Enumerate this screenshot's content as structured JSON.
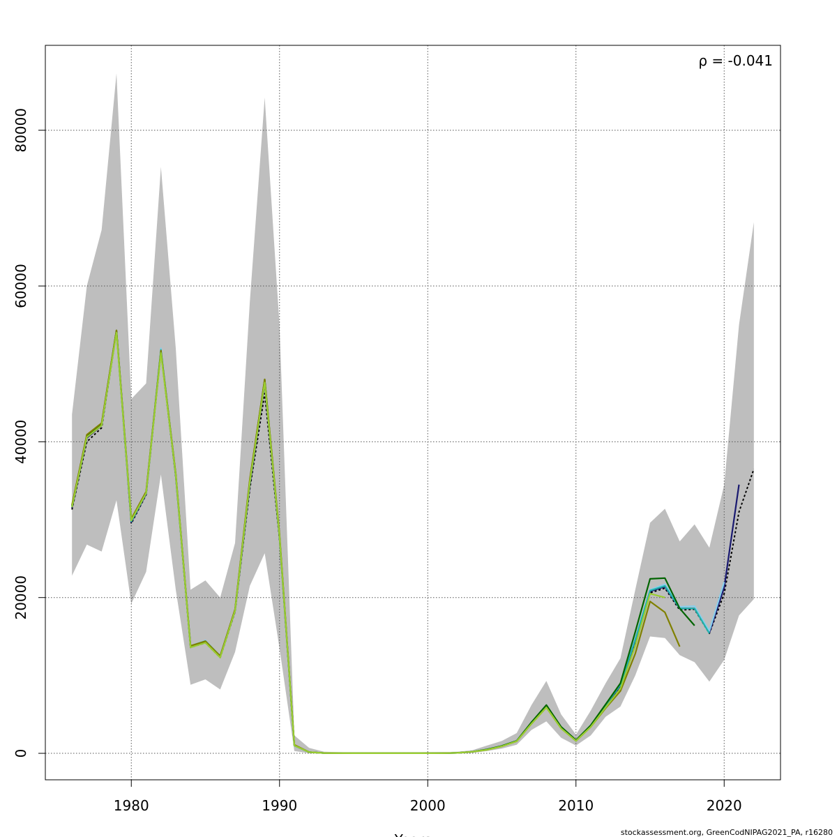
{
  "chart_data": {
    "type": "line",
    "xlabel": "Years",
    "ylabel": "",
    "xlim": [
      1974.2,
      1923.8
    ],
    "ylim": [
      -3400,
      90900
    ],
    "x_ticks": [
      1980,
      1990,
      2000,
      2010,
      2020
    ],
    "y_ticks": [
      0,
      20000,
      40000,
      60000,
      80000
    ],
    "grid": true,
    "annotation": "ρ = -0.041",
    "credit": "stockassessment.org, GreenCodNIPAG2021_PA, r16280",
    "band_color": "#bebebe",
    "confidence_band": {
      "x": [
        1976,
        1977,
        1978,
        1979,
        1980,
        1981,
        1982,
        1983,
        1984,
        1985,
        1986,
        1987,
        1988,
        1989,
        1990,
        1991,
        1992,
        1993,
        1994,
        1995,
        1996,
        1997,
        1998,
        1999,
        2000,
        2001,
        2002,
        2003,
        2004,
        2005,
        2006,
        2007,
        2008,
        2009,
        2010,
        2011,
        2012,
        2013,
        2014,
        2015,
        2016,
        2017,
        2018,
        2019,
        2020,
        2021,
        2022
      ],
      "upper": [
        43500,
        60000,
        67200,
        87300,
        45500,
        47500,
        75300,
        52000,
        21000,
        22200,
        20000,
        27000,
        58000,
        84200,
        55000,
        2300,
        700,
        200,
        150,
        120,
        100,
        100,
        120,
        130,
        150,
        160,
        200,
        400,
        1000,
        1600,
        2600,
        6200,
        9300,
        5000,
        2400,
        5500,
        9000,
        12200,
        21000,
        29600,
        31400,
        27200,
        29400,
        26400,
        34500,
        55000,
        68200
      ],
      "lower": [
        22800,
        26800,
        25900,
        32500,
        19200,
        23300,
        35800,
        21000,
        8800,
        9500,
        8200,
        13000,
        21500,
        25700,
        13500,
        300,
        10,
        5,
        3,
        3,
        3,
        3,
        3,
        3,
        3,
        3,
        10,
        50,
        300,
        600,
        1100,
        3000,
        4100,
        2000,
        1000,
        2300,
        4700,
        6000,
        10000,
        15000,
        14800,
        12600,
        11700,
        9200,
        12000,
        17700,
        19800
      ]
    },
    "series": [
      {
        "color": "#000000",
        "dashed": true,
        "x": [
          1976,
          1977,
          1978,
          1979,
          1980,
          1981,
          1982,
          1983,
          1984,
          1985,
          1986,
          1987,
          1988,
          1989,
          1990,
          1991,
          1992,
          1993,
          1994,
          1995,
          1996,
          1997,
          1998,
          1999,
          2000,
          2001,
          2002,
          2003,
          2004,
          2005,
          2006,
          2007,
          2008,
          2009,
          2010,
          2011,
          2012,
          2013,
          2014,
          2015,
          2016,
          2017,
          2018,
          2019,
          2020,
          2021,
          2022
        ],
        "values": [
          31300,
          40000,
          41800,
          54100,
          29500,
          33200,
          51500,
          35500,
          13600,
          14200,
          12300,
          18200,
          34000,
          46200,
          27500,
          1000,
          150,
          40,
          20,
          10,
          10,
          10,
          10,
          10,
          15,
          20,
          60,
          200,
          500,
          950,
          1600,
          3900,
          6100,
          3300,
          1600,
          3500,
          6100,
          8600,
          14300,
          20600,
          21200,
          18400,
          18500,
          15400,
          20500,
          31000,
          36500
        ]
      },
      {
        "color": "#191970",
        "dashed": false,
        "x": [
          1976,
          1977,
          1978,
          1979,
          1980,
          1981,
          1982,
          1983,
          1984,
          1985,
          1986,
          1987,
          1988,
          1989,
          1990,
          1991,
          1992,
          1993,
          1994,
          1995,
          1996,
          1997,
          1998,
          1999,
          2000,
          2001,
          2002,
          2003,
          2004,
          2005,
          2006,
          2007,
          2008,
          2009,
          2010,
          2011,
          2012,
          2013,
          2014,
          2015,
          2016,
          2017,
          2018,
          2019,
          2020,
          2021
        ],
        "values": [
          31500,
          40500,
          42100,
          54200,
          29700,
          33300,
          51700,
          35600,
          13700,
          14300,
          12400,
          18300,
          34500,
          47500,
          27800,
          1000,
          150,
          40,
          20,
          10,
          10,
          10,
          10,
          10,
          15,
          20,
          60,
          200,
          500,
          950,
          1600,
          3900,
          6100,
          3300,
          1600,
          3500,
          6100,
          8700,
          14500,
          20800,
          21400,
          18600,
          18600,
          15500,
          21300,
          34500
        ]
      },
      {
        "color": "#87ceeb",
        "dashed": false,
        "x": [
          1976,
          1977,
          1978,
          1979,
          1980,
          1981,
          1982,
          1983,
          1984,
          1985,
          1986,
          1987,
          1988,
          1989,
          1990,
          1991,
          1992,
          1993,
          1994,
          1995,
          1996,
          1997,
          1998,
          1999,
          2000,
          2001,
          2002,
          2003,
          2004,
          2005,
          2006,
          2007,
          2008,
          2009,
          2010,
          2011,
          2012,
          2013,
          2014,
          2015,
          2016,
          2017,
          2018,
          2019,
          2020
        ],
        "values": [
          31700,
          40700,
          42200,
          54200,
          29800,
          33400,
          52000,
          35700,
          13800,
          14500,
          12500,
          18400,
          34800,
          47800,
          27900,
          1000,
          150,
          40,
          20,
          10,
          10,
          10,
          10,
          10,
          15,
          20,
          60,
          200,
          500,
          950,
          1600,
          3900,
          6100,
          3300,
          1600,
          3500,
          6200,
          8800,
          14700,
          21000,
          21700,
          18800,
          18900,
          15700,
          22000
        ]
      },
      {
        "color": "#20b2aa",
        "dashed": false,
        "x": [
          1976,
          1977,
          1978,
          1979,
          1980,
          1981,
          1982,
          1983,
          1984,
          1985,
          1986,
          1987,
          1988,
          1989,
          1990,
          1991,
          1992,
          1993,
          1994,
          1995,
          1996,
          1997,
          1998,
          1999,
          2000,
          2001,
          2002,
          2003,
          2004,
          2005,
          2006,
          2007,
          2008,
          2009,
          2010,
          2011,
          2012,
          2013,
          2014,
          2015,
          2016,
          2017,
          2018,
          2019
        ],
        "values": [
          31700,
          40700,
          42200,
          54200,
          29800,
          33400,
          51800,
          35700,
          13700,
          14400,
          12500,
          18400,
          34800,
          47900,
          27900,
          1000,
          150,
          40,
          20,
          10,
          10,
          10,
          10,
          10,
          15,
          20,
          60,
          200,
          500,
          950,
          1600,
          3900,
          6100,
          3300,
          1600,
          3500,
          6200,
          8800,
          14600,
          20900,
          21500,
          18600,
          18600,
          15400
        ]
      },
      {
        "color": "#006400",
        "dashed": false,
        "x": [
          1976,
          1977,
          1978,
          1979,
          1980,
          1981,
          1982,
          1983,
          1984,
          1985,
          1986,
          1987,
          1988,
          1989,
          1990,
          1991,
          1992,
          1993,
          1994,
          1995,
          1996,
          1997,
          1998,
          1999,
          2000,
          2001,
          2002,
          2003,
          2004,
          2005,
          2006,
          2007,
          2008,
          2009,
          2010,
          2011,
          2012,
          2013,
          2014,
          2015,
          2016,
          2017,
          2018
        ],
        "values": [
          31800,
          40800,
          42300,
          54300,
          30000,
          33500,
          51600,
          35800,
          13700,
          14300,
          12400,
          18400,
          35000,
          48000,
          28000,
          1050,
          150,
          40,
          20,
          10,
          10,
          10,
          10,
          10,
          15,
          20,
          60,
          200,
          500,
          950,
          1600,
          4000,
          6200,
          3400,
          1700,
          3600,
          6300,
          9000,
          15600,
          22400,
          22500,
          18600,
          16400
        ]
      },
      {
        "color": "#808000",
        "dashed": false,
        "x": [
          1976,
          1977,
          1978,
          1979,
          1980,
          1981,
          1982,
          1983,
          1984,
          1985,
          1986,
          1987,
          1988,
          1989,
          1990,
          1991,
          1992,
          1993,
          1994,
          1995,
          1996,
          1997,
          1998,
          1999,
          2000,
          2001,
          2002,
          2003,
          2004,
          2005,
          2006,
          2007,
          2008,
          2009,
          2010,
          2011,
          2012,
          2013,
          2014,
          2015,
          2016,
          2017
        ],
        "values": [
          31900,
          40900,
          42400,
          54300,
          30100,
          33600,
          51700,
          35900,
          13800,
          14400,
          12500,
          18500,
          35200,
          48000,
          28200,
          1100,
          150,
          40,
          20,
          10,
          10,
          10,
          10,
          10,
          15,
          20,
          60,
          200,
          450,
          900,
          1550,
          3800,
          5900,
          3200,
          1600,
          3400,
          5800,
          8000,
          12800,
          19500,
          18100,
          13700
        ]
      },
      {
        "color": "#9acd32",
        "dashed": false,
        "x": [
          1976,
          1977,
          1978,
          1979,
          1980,
          1981,
          1982,
          1983,
          1984,
          1985,
          1986,
          1987,
          1988,
          1989,
          1990,
          1991,
          1992,
          1993,
          1994,
          1995,
          1996,
          1997,
          1998,
          1999,
          2000,
          2001,
          2002,
          2003,
          2004,
          2005,
          2006,
          2007,
          2008,
          2009,
          2010,
          2011,
          2012,
          2013,
          2014,
          2015,
          2016
        ],
        "values": [
          31600,
          40600,
          42100,
          54000,
          29900,
          33400,
          51400,
          35700,
          13600,
          14200,
          12300,
          18300,
          34800,
          47600,
          27900,
          1000,
          150,
          40,
          20,
          10,
          10,
          10,
          10,
          10,
          15,
          20,
          60,
          200,
          450,
          900,
          1550,
          3800,
          5900,
          3200,
          1600,
          3400,
          5900,
          8300,
          13800,
          20500,
          20000
        ]
      }
    ]
  }
}
